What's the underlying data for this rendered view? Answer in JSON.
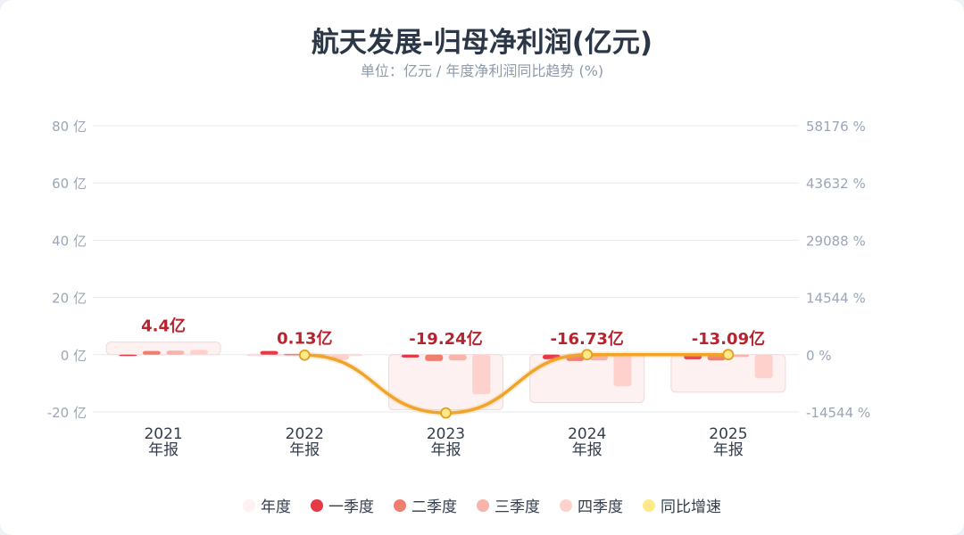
{
  "chart_data": {
    "type": "bar",
    "title": "航天发展-归母净利润(亿元)",
    "subtitle": "单位：亿元 / 年度净利润同比趋势 (%)",
    "categories": [
      {
        "year": "2021",
        "period": "年报"
      },
      {
        "year": "2022",
        "period": "年报"
      },
      {
        "year": "2023",
        "period": "年报"
      },
      {
        "year": "2024",
        "period": "年报"
      },
      {
        "year": "2025",
        "period": "年报"
      }
    ],
    "annual_labels": [
      "4.4亿",
      "0.13亿",
      "-19.24亿",
      "-16.73亿",
      "-13.09亿"
    ],
    "series": [
      {
        "name": "年度",
        "values": [
          4.4,
          0.13,
          -19.24,
          -16.73,
          -13.09
        ],
        "color": "#fdf1f2"
      },
      {
        "name": "一季度",
        "values": [
          -0.3,
          1.3,
          -1.0,
          -1.6,
          -1.6
        ],
        "color": "#e63946"
      },
      {
        "name": "二季度",
        "values": [
          1.3,
          0.3,
          -2.2,
          -2.2,
          -2.0
        ],
        "color": "#f07e6e"
      },
      {
        "name": "三季度",
        "values": [
          1.4,
          0.2,
          -2.0,
          -2.0,
          -0.8
        ],
        "color": "#f8b4aa"
      },
      {
        "name": "四季度",
        "values": [
          1.7,
          -1.8,
          -13.8,
          -11.0,
          -8.2
        ],
        "color": "#ffd1cc"
      }
    ],
    "yoy": {
      "name": "同比增速",
      "values": [
        null,
        -97.0,
        -14800.0,
        13.0,
        21.8
      ],
      "color": "#f0a429",
      "marker_color": "#ffe98a"
    },
    "y_left": {
      "ticks": [
        80,
        60,
        40,
        20,
        0,
        -20
      ],
      "tick_labels": [
        "80 亿",
        "60 亿",
        "40 亿",
        "20 亿",
        "0 亿",
        "-20 亿"
      ],
      "min": -20,
      "max": 80
    },
    "y_right": {
      "ticks": [
        58176,
        43632,
        29088,
        14544,
        0,
        -14544
      ],
      "tick_labels": [
        "58176 %",
        "43632 %",
        "29088 %",
        "14544 %",
        "0 %",
        "-14544 %"
      ],
      "min": -14544,
      "max": 58176
    },
    "grid": true,
    "legend_position": "bottom"
  }
}
